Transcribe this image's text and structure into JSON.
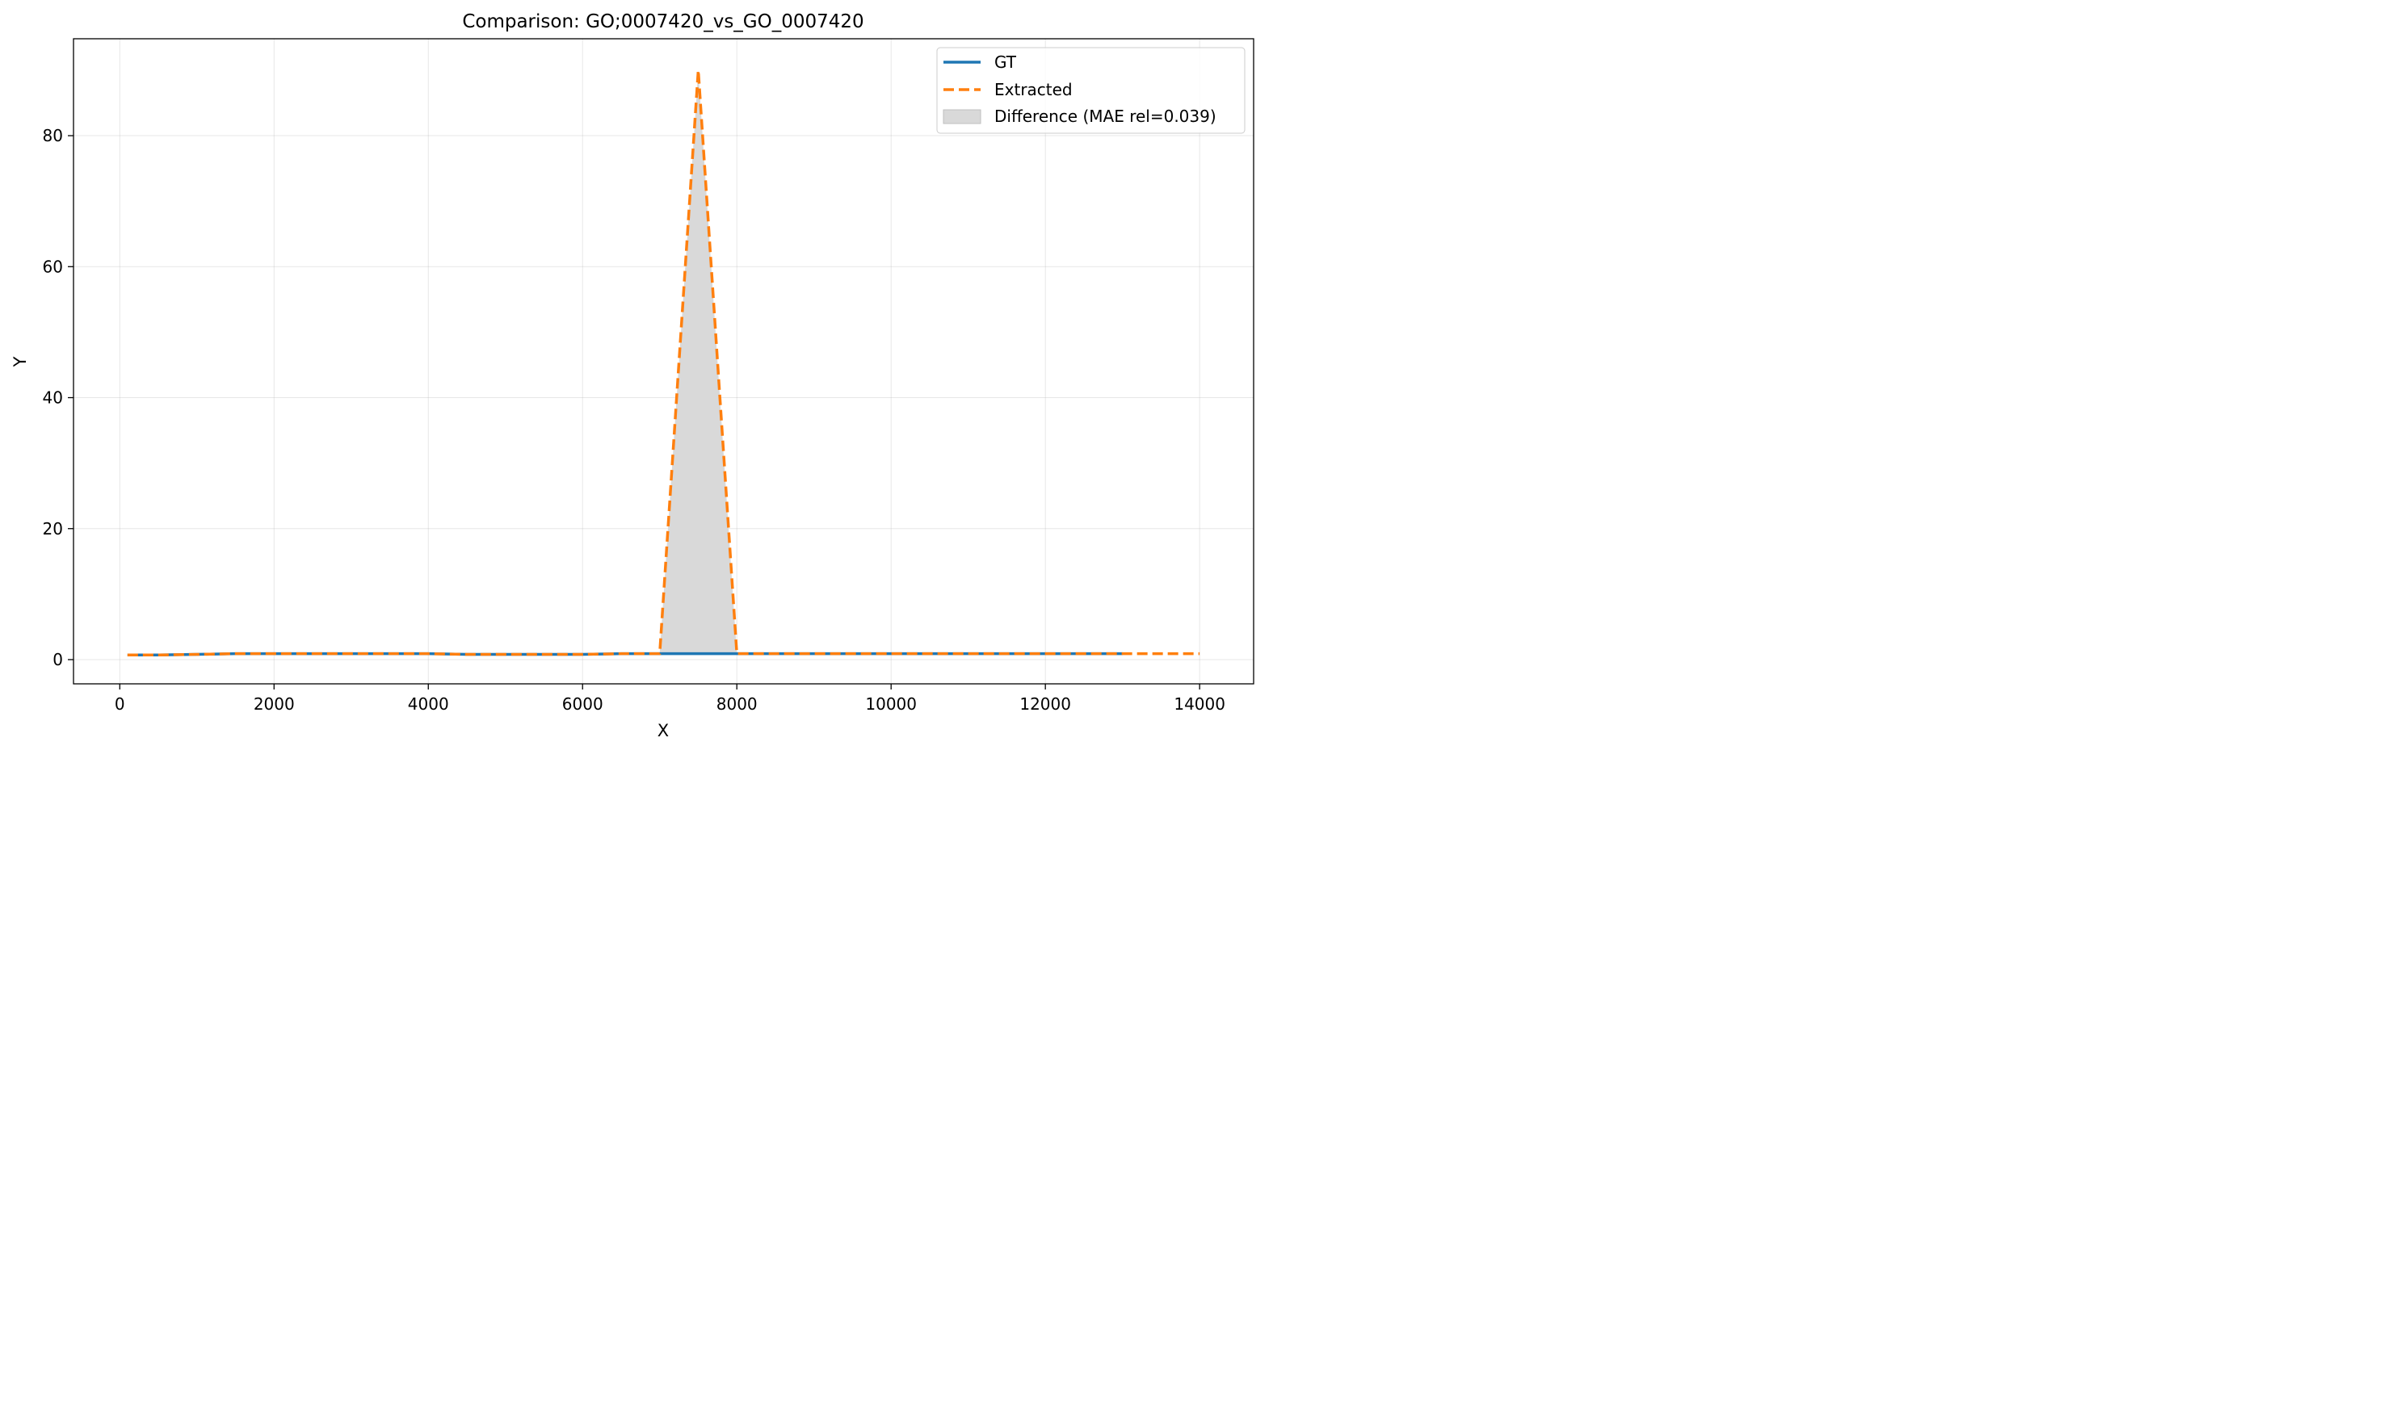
{
  "chart_data": {
    "type": "line",
    "title": "Comparison: GO;0007420_vs_GO_0007420",
    "xlabel": "X",
    "ylabel": "Y",
    "xlim": [
      -600,
      14700
    ],
    "ylim": [
      -3.7,
      94.8
    ],
    "xticks": [
      0,
      2000,
      4000,
      6000,
      8000,
      10000,
      12000,
      14000
    ],
    "xtick_labels": [
      "0",
      "2000",
      "4000",
      "6000",
      "8000",
      "10000",
      "12000",
      "14000"
    ],
    "yticks": [
      0,
      20,
      40,
      60,
      80
    ],
    "ytick_labels": [
      "0",
      "20",
      "40",
      "60",
      "80"
    ],
    "grid": true,
    "legend_position": "top-right",
    "series": [
      {
        "name": "GT",
        "style": "solid",
        "color": "#1f77b4",
        "x": [
          100,
          500,
          1000,
          1500,
          2000,
          2500,
          3000,
          3500,
          4000,
          4500,
          5000,
          5500,
          6000,
          6500,
          7000,
          7500,
          8000,
          8500,
          9000,
          9500,
          10000,
          10500,
          11000,
          11500,
          12000,
          12500,
          13000
        ],
        "y": [
          0.7,
          0.7,
          0.8,
          0.9,
          0.9,
          0.9,
          0.9,
          0.9,
          0.9,
          0.8,
          0.8,
          0.8,
          0.8,
          0.9,
          0.9,
          0.9,
          0.9,
          0.9,
          0.9,
          0.9,
          0.9,
          0.9,
          0.9,
          0.9,
          0.9,
          0.9,
          0.9
        ]
      },
      {
        "name": "Extracted",
        "style": "dashed",
        "color": "#ff7f0e",
        "x": [
          100,
          500,
          1000,
          1500,
          2000,
          2500,
          3000,
          3500,
          4000,
          4500,
          5000,
          5500,
          6000,
          6500,
          7000,
          7500,
          8000,
          8500,
          9000,
          9500,
          10000,
          10500,
          11000,
          11500,
          12000,
          12500,
          13000,
          13500,
          14000
        ],
        "y": [
          0.7,
          0.7,
          0.8,
          0.9,
          0.9,
          0.9,
          0.9,
          0.9,
          0.9,
          0.8,
          0.8,
          0.8,
          0.8,
          0.9,
          0.9,
          90.0,
          0.9,
          0.9,
          0.9,
          0.9,
          0.9,
          0.9,
          0.9,
          0.9,
          0.9,
          0.9,
          0.9,
          0.9,
          0.9
        ]
      }
    ],
    "fill": {
      "name": "Difference (MAE rel=0.039)",
      "color": "#d9d9d9",
      "between": [
        "GT",
        "Extracted"
      ]
    }
  }
}
